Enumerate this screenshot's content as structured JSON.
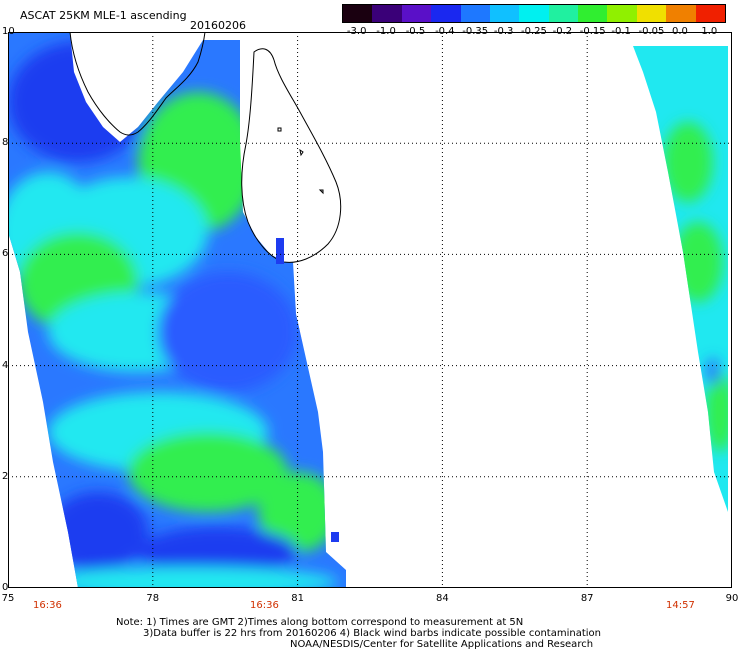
{
  "title": "ASCAT 25KM MLE-1 ascending",
  "date": "20160206",
  "colorbar": {
    "labels": [
      "-3.0",
      "-1.0",
      "-0.5",
      "-0.4",
      "-0.35",
      "-0.3",
      "-0.25",
      "-0.2",
      "-0.15",
      "-0.1",
      "-0.05",
      "0.0",
      "1.0"
    ],
    "colors": [
      "#1a0010",
      "#3a0078",
      "#5a10c8",
      "#1a28f0",
      "#1e78ff",
      "#10c0ff",
      "#00f0f0",
      "#20f0a0",
      "#30ee30",
      "#90f000",
      "#f0e000",
      "#f08000",
      "#f02000"
    ]
  },
  "map": {
    "x_ticks": [
      "75",
      "78",
      "81",
      "84",
      "87",
      "90"
    ],
    "y_ticks": [
      "0",
      "2",
      "4",
      "6",
      "8",
      "10"
    ],
    "lon_range": [
      75,
      90
    ],
    "lat_range": [
      0,
      10
    ],
    "pass_times": [
      "16:36",
      "16:36",
      "14:57"
    ],
    "value_colors": {
      "very_low": "#1e3cf0",
      "low": "#2a78ff",
      "mid": "#20e8f0",
      "high": "#30ee50",
      "land_edge": "#ffe000"
    },
    "coastline_color": "#000000"
  },
  "notes": {
    "line1": "Note: 1) Times are GMT 2)Times along bottom correspond to measurement at 5N",
    "line2": "3)Data buffer is 22 hrs from 20160206 4) Black wind barbs indicate possible contamination",
    "line3": "NOAA/NESDIS/Center for Satellite Applications and Research"
  }
}
